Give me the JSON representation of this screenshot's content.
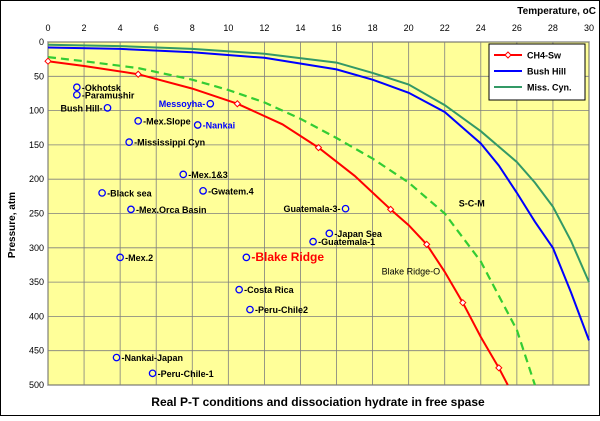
{
  "chart_data": {
    "type": "line",
    "title": "Real P-T conditions and dissociation hydrate in free spase",
    "xlabel": "Temperature, oC",
    "ylabel": "Pressure, atm",
    "xlim": [
      0,
      30
    ],
    "ylim": [
      0,
      500
    ],
    "y_axis_inverted": true,
    "x_axis_position": "top",
    "x_ticks": [
      0,
      2,
      4,
      6,
      8,
      10,
      12,
      14,
      16,
      18,
      20,
      22,
      24,
      26,
      28,
      30
    ],
    "y_ticks": [
      0,
      50,
      100,
      150,
      200,
      250,
      300,
      350,
      400,
      450,
      500
    ],
    "grid": true,
    "legend_position": "top-right",
    "colors": {
      "plot_background": "#FFFF99",
      "grid": "#7F7F7F",
      "ch4": "#FF0000",
      "bush_hill": "#0000FF",
      "miss_cyn": "#339966",
      "dashed": "#33CC33",
      "site_marker": "#0000FF",
      "blake_ridge_label": "#FF0000",
      "blue_labels": "#0000FF"
    },
    "series": [
      {
        "name": "CH4-Sw",
        "color": "#FF0000",
        "marker": "open-diamond",
        "x": [
          0,
          2,
          5,
          8,
          10.5,
          13,
          15,
          17,
          19,
          20,
          21,
          22,
          23,
          24,
          25,
          25.5
        ],
        "y": [
          28,
          35,
          47,
          68,
          90,
          120,
          154,
          195,
          244,
          267,
          295,
          335,
          380,
          430,
          475,
          500
        ]
      },
      {
        "name": "Bush Hill",
        "color": "#0000FF",
        "x": [
          0,
          4,
          8,
          12,
          16,
          18,
          20,
          22,
          24,
          25,
          26,
          27,
          28,
          29,
          30
        ],
        "y": [
          8,
          10,
          15,
          23,
          40,
          55,
          74,
          102,
          148,
          180,
          220,
          262,
          300,
          365,
          435
        ]
      },
      {
        "name": "Miss. Cyn.",
        "color": "#339966",
        "x": [
          0,
          4,
          8,
          12,
          16,
          18,
          20,
          22,
          24,
          26,
          27,
          28,
          29,
          30
        ],
        "y": [
          4,
          6,
          10,
          17,
          30,
          45,
          62,
          92,
          130,
          175,
          205,
          240,
          290,
          350
        ]
      },
      {
        "name": "",
        "color": "#33CC33",
        "dashed": true,
        "x": [
          0,
          2,
          5,
          8,
          10,
          12,
          14,
          16,
          18,
          20,
          22,
          24,
          25,
          26,
          27
        ],
        "y": [
          22,
          28,
          38,
          55,
          70,
          88,
          112,
          140,
          170,
          205,
          250,
          320,
          370,
          420,
          500
        ]
      }
    ],
    "sites": [
      {
        "label": "Okhotsk",
        "x": 1.6,
        "y": 66,
        "anchor": "start"
      },
      {
        "label": "Paramushir",
        "x": 1.6,
        "y": 77,
        "anchor": "start"
      },
      {
        "label": "Bush Hill",
        "x": 3.3,
        "y": 96,
        "anchor": "end"
      },
      {
        "label": "Mex.Slope",
        "x": 5.0,
        "y": 115,
        "anchor": "start"
      },
      {
        "label": "Messoyha",
        "x": 9.0,
        "y": 90,
        "anchor": "end",
        "color": "#0000FF"
      },
      {
        "label": "Nankai",
        "x": 8.3,
        "y": 121,
        "anchor": "start",
        "color": "#0000FF"
      },
      {
        "label": "Mississippi Cyn",
        "x": 4.5,
        "y": 146,
        "anchor": "start"
      },
      {
        "label": "Mex.1&3",
        "x": 7.5,
        "y": 193,
        "anchor": "start"
      },
      {
        "label": "Black sea",
        "x": 3.0,
        "y": 220,
        "anchor": "start"
      },
      {
        "label": "Gwatem.4",
        "x": 8.6,
        "y": 217,
        "anchor": "start"
      },
      {
        "label": "Mex.Orca Basin",
        "x": 4.6,
        "y": 244,
        "anchor": "start"
      },
      {
        "label": "Guatemala-3",
        "x": 16.5,
        "y": 243,
        "anchor": "end"
      },
      {
        "label": "Japan Sea",
        "x": 15.6,
        "y": 279,
        "anchor": "start"
      },
      {
        "label": "Guatemala-1",
        "x": 14.7,
        "y": 291,
        "anchor": "start"
      },
      {
        "label": "Mex.2",
        "x": 4.0,
        "y": 314,
        "anchor": "start"
      },
      {
        "label": "Blake Ridge",
        "x": 11.0,
        "y": 314,
        "anchor": "start",
        "color": "#FF0000",
        "emphasis": true
      },
      {
        "label": "Costa Rica",
        "x": 10.6,
        "y": 361,
        "anchor": "start"
      },
      {
        "label": "Peru-Chile2",
        "x": 11.2,
        "y": 390,
        "anchor": "start"
      },
      {
        "label": "Nankai-Japan",
        "x": 3.8,
        "y": 460,
        "anchor": "start"
      },
      {
        "label": "Peru-Chile-1",
        "x": 5.8,
        "y": 483,
        "anchor": "start"
      }
    ],
    "annotations": [
      {
        "text": "S-C-M",
        "x": 23.5,
        "y": 240
      },
      {
        "text": "Blake Ridge-O",
        "x": 18.5,
        "y": 339
      }
    ]
  }
}
